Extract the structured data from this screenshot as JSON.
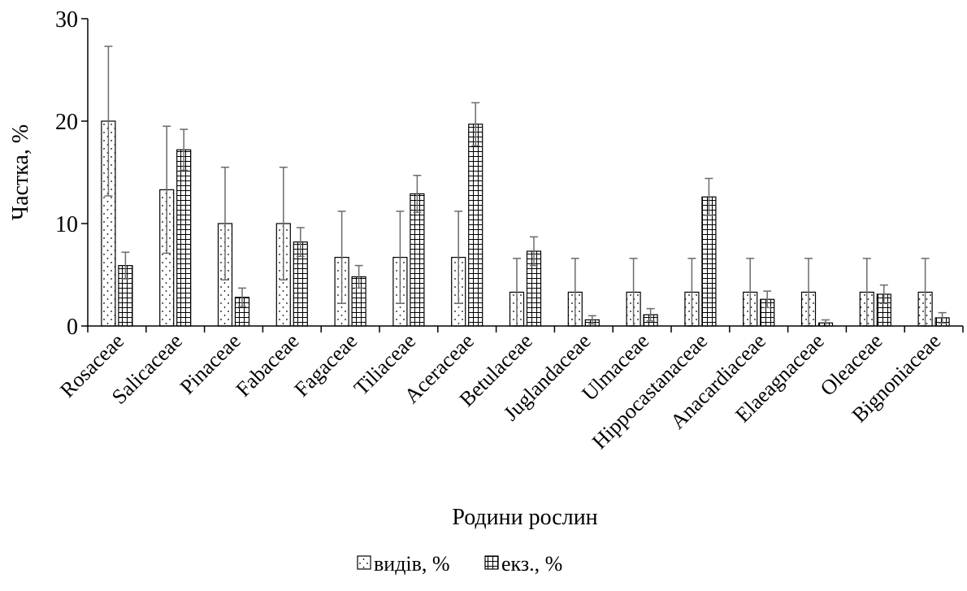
{
  "chart_data": {
    "type": "bar",
    "title": "",
    "xlabel": "Родини рослин",
    "ylabel": "Частка, %",
    "ylim": [
      0,
      30
    ],
    "yticks": [
      0,
      10,
      20,
      30
    ],
    "grid": false,
    "legend_position": "bottom",
    "categories": [
      "Rosaceae",
      "Salicaceae",
      "Pinaceae",
      "Fabaceae",
      "Fagaceae",
      "Tiliaceae",
      "Aceraceae",
      "Betulaceae",
      "Juglandaceae",
      "Ulmaceae",
      "Hippocastanaceae",
      "Anacardiaceae",
      "Elaeagnaceae",
      "Oleaceae",
      "Bignoniaceae"
    ],
    "series": [
      {
        "name": "видів, %",
        "pattern": "dots",
        "values": [
          20.0,
          13.3,
          10.0,
          10.0,
          6.7,
          6.7,
          6.7,
          3.3,
          3.3,
          3.3,
          3.3,
          3.3,
          3.3,
          3.3,
          3.3
        ],
        "error": [
          7.3,
          6.2,
          5.5,
          5.5,
          4.5,
          4.5,
          4.5,
          3.3,
          3.3,
          3.3,
          3.3,
          3.3,
          3.3,
          3.3,
          3.3
        ]
      },
      {
        "name": "екз., %",
        "pattern": "grid",
        "values": [
          5.9,
          17.2,
          2.8,
          8.2,
          4.8,
          12.9,
          19.7,
          7.3,
          0.6,
          1.1,
          12.6,
          2.6,
          0.3,
          3.1,
          0.8
        ],
        "error": [
          1.3,
          2.0,
          0.9,
          1.4,
          1.1,
          1.8,
          2.1,
          1.4,
          0.4,
          0.6,
          1.8,
          0.8,
          0.3,
          0.9,
          0.5
        ]
      }
    ]
  }
}
